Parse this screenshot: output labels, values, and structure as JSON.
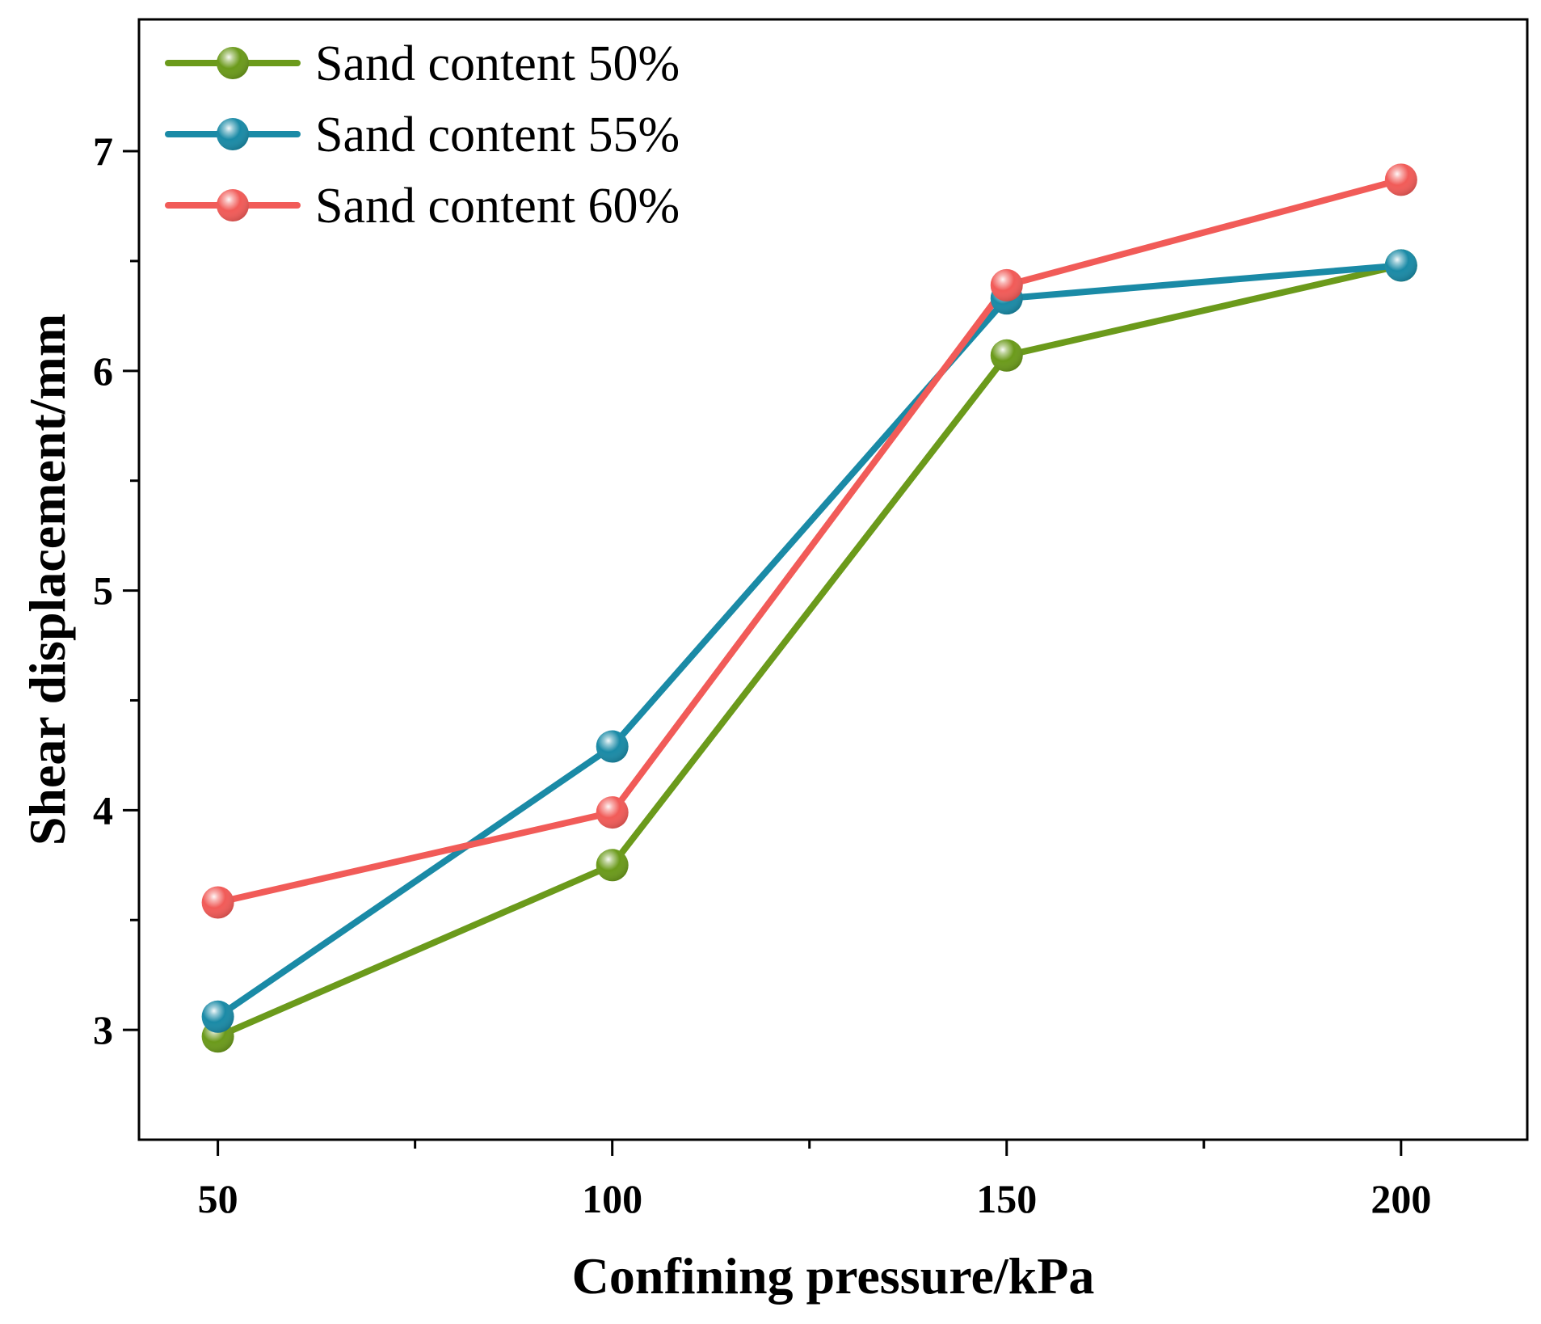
{
  "chart_data": {
    "type": "line",
    "title": "",
    "xlabel": "Confining pressure/kPa",
    "ylabel": "Shear displacement/mm",
    "x": [
      50,
      100,
      150,
      200
    ],
    "xlim": [
      40,
      216
    ],
    "ylim": [
      2.5,
      7.6
    ],
    "x_ticks": [
      "50",
      "100",
      "150",
      "200"
    ],
    "y_ticks": [
      "3",
      "4",
      "5",
      "6",
      "7"
    ],
    "x_minor_ticks": [
      75,
      125,
      175
    ],
    "y_minor_ticks": [
      3.5,
      4.5,
      5.5,
      6.5
    ],
    "grid": false,
    "legend_position": "top-left",
    "series": [
      {
        "name": "Sand content 50%",
        "color": "#6b9a1b",
        "values": [
          2.97,
          3.75,
          6.07,
          6.48
        ]
      },
      {
        "name": "Sand content 55%",
        "color": "#1a8aa6",
        "values": [
          3.06,
          4.29,
          6.33,
          6.48
        ]
      },
      {
        "name": "Sand content 60%",
        "color": "#f15b58",
        "values": [
          3.58,
          3.99,
          6.39,
          6.87
        ]
      }
    ]
  }
}
